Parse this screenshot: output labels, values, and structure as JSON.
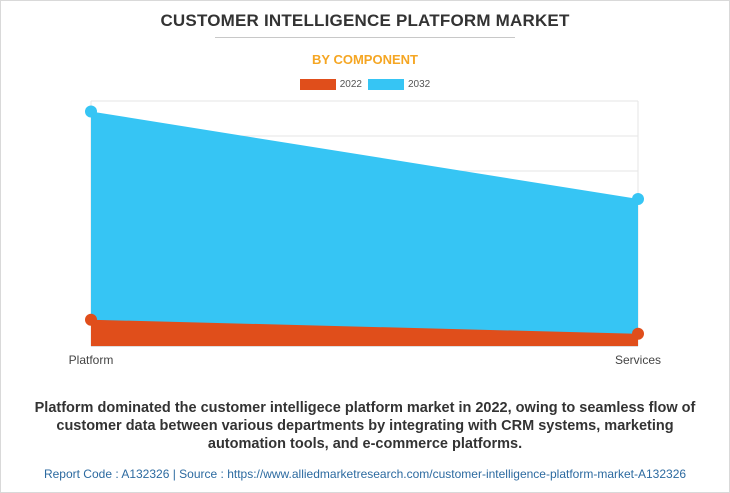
{
  "header": {
    "title": "CUSTOMER INTELLIGENCE PLATFORM MARKET",
    "subtitle": "BY COMPONENT"
  },
  "legend": [
    {
      "label": "2022",
      "color": "#e04e1b"
    },
    {
      "label": "2032",
      "color": "#36c5f4"
    }
  ],
  "chart_data": {
    "type": "area",
    "categories": [
      "Platform",
      "Services"
    ],
    "series": [
      {
        "name": "2032",
        "values": [
          67,
          42
        ],
        "color": "#36c5f4"
      },
      {
        "name": "2022",
        "values": [
          7.5,
          3.5
        ],
        "color": "#e04e1b"
      }
    ],
    "ylim": [
      0,
      70
    ],
    "grid": true,
    "legend_position": "top-center"
  },
  "description": "Platform dominated the customer intelligece platform market in 2022, owing to seamless flow of customer data between various departments by integrating with CRM systems, marketing automation tools, and e-commerce platforms.",
  "footer": "Report Code : A132326  |  Source : https://www.alliedmarketresearch.com/customer-intelligence-platform-market-A132326"
}
